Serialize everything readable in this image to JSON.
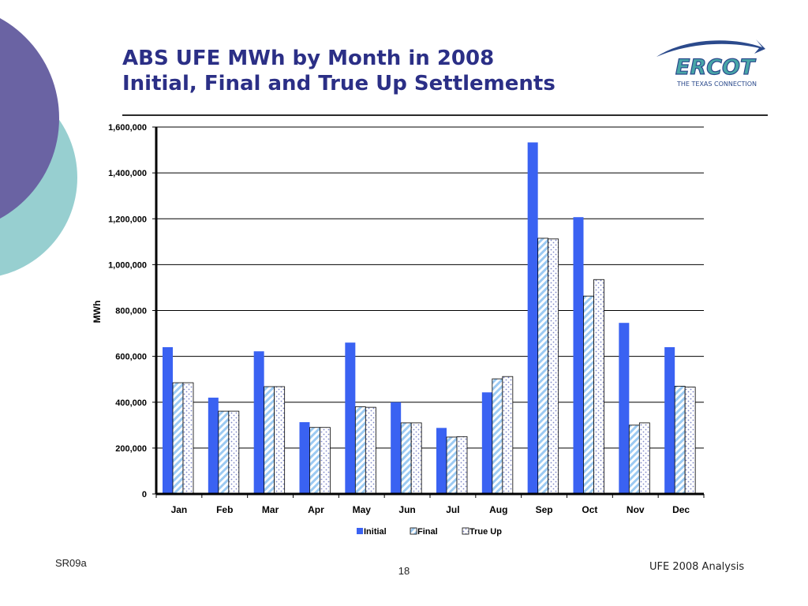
{
  "slide": {
    "title_line1": "ABS UFE MWh by Month in 2008",
    "title_line2": "Initial, Final and True Up Settlements",
    "footer_left": "SR09a",
    "page_number": "18",
    "footer_right": "UFE 2008 Analysis",
    "logo_text": "ERCOT",
    "logo_tagline": "THE TEXAS CONNECTION"
  },
  "colors": {
    "title": "#2b2f86",
    "initial": "#3a62f2",
    "final_stripe": "#9ccaf2",
    "trueup_dots": "#7d86c8",
    "deco_purple": "#6a63a3",
    "deco_teal": "#97cfd0",
    "logo_swoosh": "#2b4a8c",
    "logo_text": "#48a6a8"
  },
  "chart_data": {
    "type": "bar",
    "categories": [
      "Jan",
      "Feb",
      "Mar",
      "Apr",
      "May",
      "Jun",
      "Jul",
      "Aug",
      "Sep",
      "Oct",
      "Nov",
      "Dec"
    ],
    "series": [
      {
        "name": "Initial",
        "values": [
          640000,
          420000,
          622000,
          313000,
          660000,
          400000,
          288000,
          443000,
          1533000,
          1207000,
          746000,
          640000
        ]
      },
      {
        "name": "Final",
        "values": [
          485000,
          361000,
          468000,
          290000,
          380000,
          310000,
          248000,
          502000,
          1115000,
          863000,
          300000,
          470000
        ]
      },
      {
        "name": "True Up",
        "values": [
          485000,
          361000,
          468000,
          290000,
          378000,
          310000,
          250000,
          512000,
          1112000,
          935000,
          310000,
          466000
        ]
      }
    ],
    "ylabel": "MWh",
    "xlabel": "",
    "ylim": [
      0,
      1600000
    ],
    "yticks": [
      "0",
      "200,000",
      "400,000",
      "600,000",
      "800,000",
      "1,000,000",
      "1,200,000",
      "1,400,000",
      "1,600,000"
    ],
    "grid": true,
    "legend_position": "bottom"
  }
}
